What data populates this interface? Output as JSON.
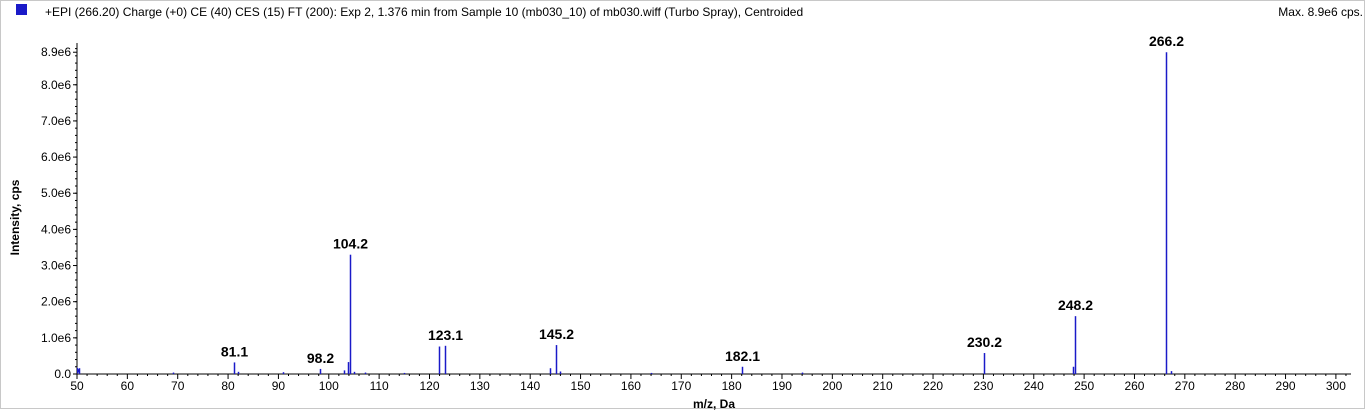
{
  "header": {
    "title": "+EPI (266.20) Charge (+0) CE (40) CES (15) FT (200): Exp 2, 1.376 min from Sample 10 (mb030_10) of mb030.wiff (Turbo Spray), Centroided",
    "max": "Max. 8.9e6 cps.",
    "swatch_color": "#1a1ac8"
  },
  "chart_data": {
    "type": "bar",
    "xlabel": "m/z, Da",
    "ylabel": "Intensity, cps",
    "xlim": [
      50,
      303
    ],
    "ylim": [
      0,
      9100000.0
    ],
    "x_ticks": [
      50,
      60,
      70,
      80,
      90,
      100,
      110,
      120,
      130,
      140,
      150,
      160,
      170,
      180,
      190,
      200,
      210,
      220,
      230,
      240,
      250,
      260,
      270,
      280,
      290,
      300
    ],
    "y_ticks": [
      {
        "value": 0,
        "label": "0.0"
      },
      {
        "value": 1000000.0,
        "label": "1.0e6"
      },
      {
        "value": 2000000.0,
        "label": "2.0e6"
      },
      {
        "value": 3000000.0,
        "label": "3.0e6"
      },
      {
        "value": 4000000.0,
        "label": "4.0e6"
      },
      {
        "value": 5000000.0,
        "label": "5.0e6"
      },
      {
        "value": 6000000.0,
        "label": "6.0e6"
      },
      {
        "value": 7000000.0,
        "label": "7.0e6"
      },
      {
        "value": 8000000.0,
        "label": "8.0e6"
      },
      {
        "value": 8900000.0,
        "label": "8.9e6"
      }
    ],
    "color": "#1a1ac8",
    "peaks": [
      {
        "mz": 50.3,
        "intensity": 160000
      },
      {
        "mz": 69.0,
        "intensity": 40000
      },
      {
        "mz": 81.1,
        "intensity": 320000,
        "label": "81.1"
      },
      {
        "mz": 82.0,
        "intensity": 60000
      },
      {
        "mz": 91.0,
        "intensity": 50000
      },
      {
        "mz": 98.2,
        "intensity": 140000,
        "label": "98.2"
      },
      {
        "mz": 103.1,
        "intensity": 100000
      },
      {
        "mz": 103.8,
        "intensity": 330000
      },
      {
        "mz": 104.2,
        "intensity": 3300000,
        "label": "104.2"
      },
      {
        "mz": 105.0,
        "intensity": 60000
      },
      {
        "mz": 107.1,
        "intensity": 40000
      },
      {
        "mz": 115.0,
        "intensity": 30000
      },
      {
        "mz": 121.9,
        "intensity": 760000
      },
      {
        "mz": 123.1,
        "intensity": 780000,
        "label": "123.1"
      },
      {
        "mz": 144.0,
        "intensity": 160000
      },
      {
        "mz": 145.2,
        "intensity": 800000,
        "label": "145.2"
      },
      {
        "mz": 146.0,
        "intensity": 70000
      },
      {
        "mz": 164.0,
        "intensity": 30000
      },
      {
        "mz": 182.1,
        "intensity": 200000,
        "label": "182.1"
      },
      {
        "mz": 194.0,
        "intensity": 40000
      },
      {
        "mz": 230.2,
        "intensity": 580000,
        "label": "230.2"
      },
      {
        "mz": 247.8,
        "intensity": 200000
      },
      {
        "mz": 248.2,
        "intensity": 1600000,
        "label": "248.2"
      },
      {
        "mz": 266.2,
        "intensity": 8900000,
        "label": "266.2"
      },
      {
        "mz": 267.2,
        "intensity": 80000
      }
    ]
  }
}
